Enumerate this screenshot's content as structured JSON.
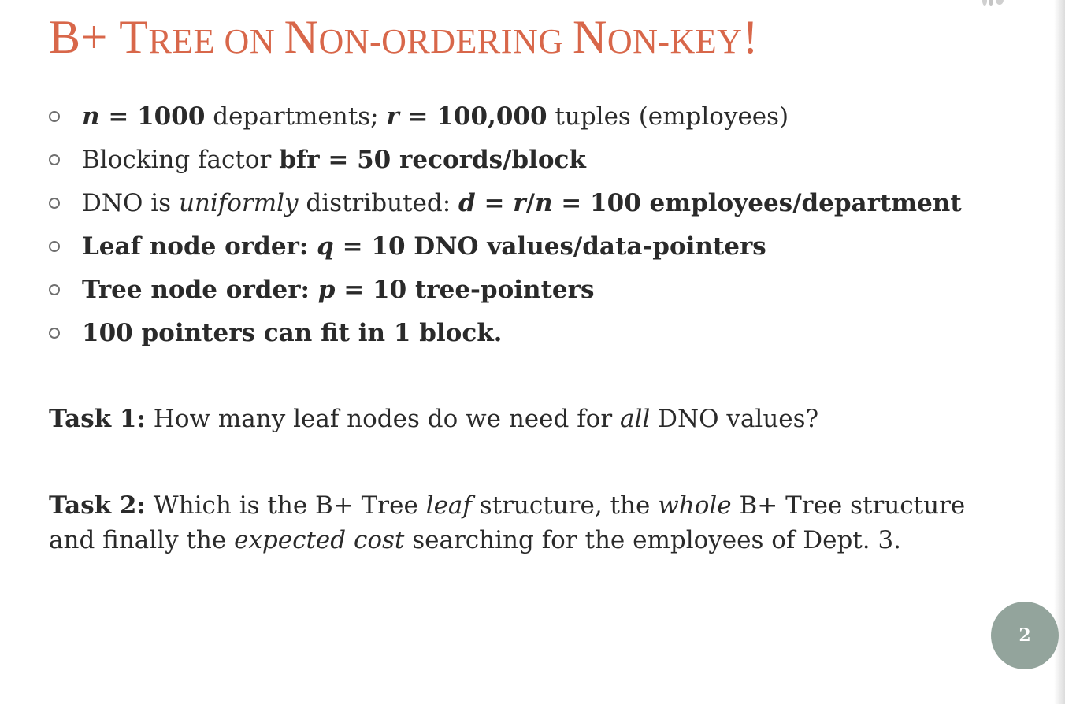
{
  "slide": {
    "title": {
      "p1": "B+ T",
      "p2": "REE ON ",
      "p3": "N",
      "p4": "ON-ORDERING ",
      "p5": "N",
      "p6": "ON-KEY",
      "p7": "!"
    },
    "bullets": [
      {
        "s1": "n",
        "s2": " = 1000",
        "s3": " departments; ",
        "s4": "r",
        "s5": " = 100,000",
        "s6": " tuples (employees)"
      },
      {
        "s1": "Blocking factor ",
        "s2": "bfr = 50 records/block"
      },
      {
        "s1": "DNO is ",
        "s2": "uniformly",
        "s3": " distributed: ",
        "s4": "d",
        "s5": " = ",
        "s6": "r",
        "s7": "/",
        "s8": "n",
        "s9": " = 100 employees/department"
      },
      {
        "s1": "Leaf node order: ",
        "s2": "q",
        "s3": " = 10 DNO values/data-pointers"
      },
      {
        "s1": "Tree node order: ",
        "s2": "p",
        "s3": " = 10 tree-pointers"
      },
      {
        "s1": "100 pointers can fit in 1 block."
      }
    ],
    "task1": {
      "label": "Task 1:",
      "t1": " How many leaf nodes do we need for ",
      "t2": "all",
      "t3": " DNO values?"
    },
    "task2": {
      "label": "Task 2:",
      "t1": " Which is the B+ Tree ",
      "t2": "leaf",
      "t3": " structure, the ",
      "t4": "whole",
      "t5": " B+ Tree structure",
      "t6": "and finally the ",
      "t7": "expected cost",
      "t8": " searching for the employees of Dept. 3."
    },
    "page_number": "2"
  },
  "colors": {
    "title": "#d8674a",
    "text": "#2a2a2a",
    "page_badge": "#93a49c"
  }
}
